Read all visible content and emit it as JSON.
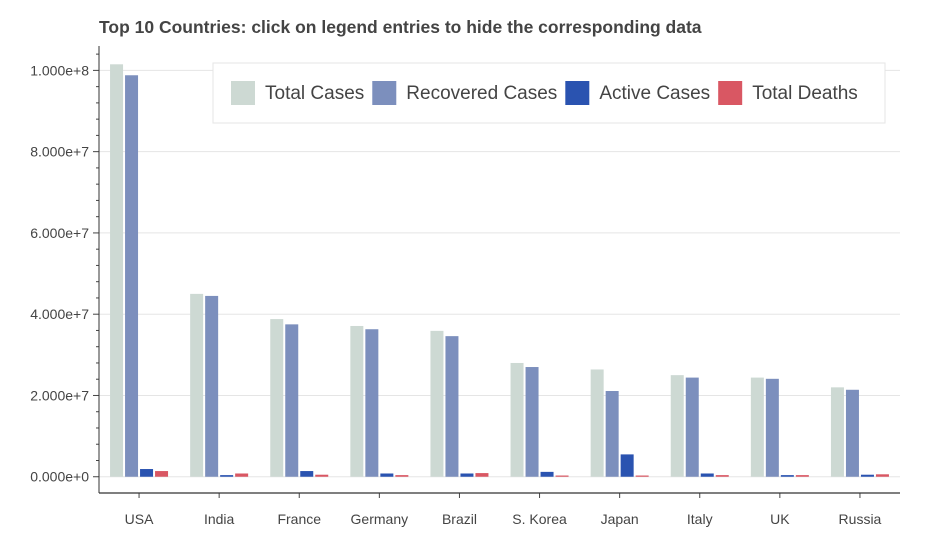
{
  "chart_data": {
    "type": "bar",
    "title": "Top 10 Countries: click on legend entries to hide the corresponding data",
    "xlabel": "",
    "ylabel": "",
    "categories": [
      "USA",
      "India",
      "France",
      "Germany",
      "Brazil",
      "S. Korea",
      "Japan",
      "Italy",
      "UK",
      "Russia"
    ],
    "series": [
      {
        "name": "Total Cases",
        "color": "#cdd9d3",
        "values": [
          101500000,
          45000000,
          38800000,
          37100000,
          35900000,
          28000000,
          26400000,
          25000000,
          24400000,
          22000000
        ]
      },
      {
        "name": "Recovered Cases",
        "color": "#7c8fbd",
        "values": [
          98800000,
          44500000,
          37500000,
          36300000,
          34600000,
          27000000,
          21100000,
          24400000,
          24100000,
          21400000
        ]
      },
      {
        "name": "Active Cases",
        "color": "#2a53b0",
        "values": [
          1900000,
          400000,
          1400000,
          800000,
          800000,
          1200000,
          5500000,
          800000,
          400000,
          500000
        ]
      },
      {
        "name": "Total Deaths",
        "color": "#d95763",
        "values": [
          1400000,
          800000,
          500000,
          400000,
          900000,
          300000,
          300000,
          400000,
          400000,
          600000
        ]
      }
    ],
    "ylim": [
      -4000000,
      106000000
    ],
    "yticks": [
      0,
      20000000,
      40000000,
      60000000,
      80000000,
      100000000
    ],
    "ytick_labels": [
      "0.000e+0",
      "2.000e+7",
      "4.000e+7",
      "6.000e+7",
      "8.000e+7",
      "1.000e+8"
    ],
    "grid": "horizontal",
    "legend_position": "top-right",
    "legend_orientation": "horizontal"
  }
}
